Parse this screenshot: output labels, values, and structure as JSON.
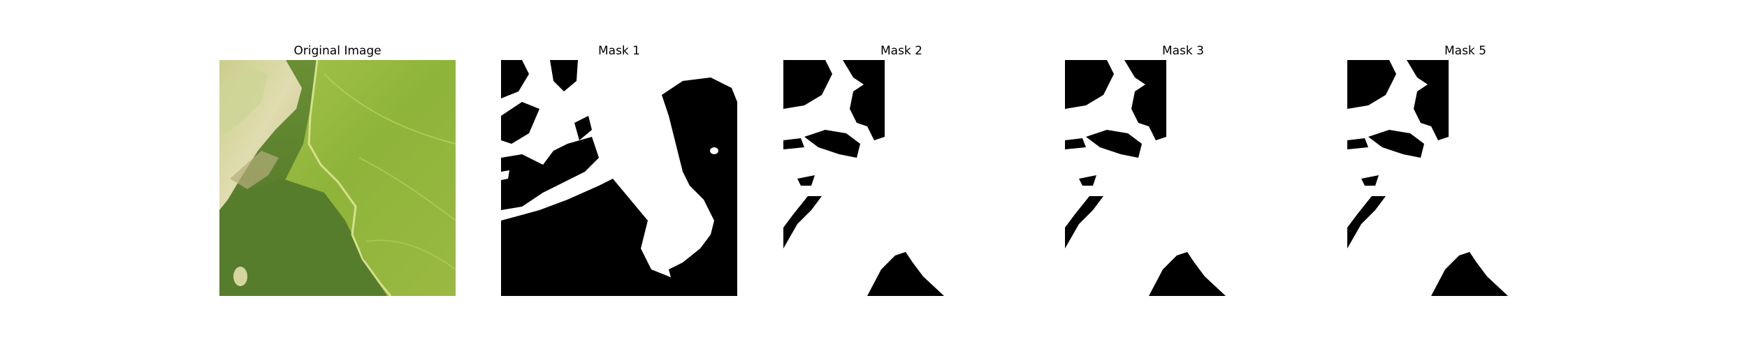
{
  "figure": {
    "panels": [
      {
        "title": "Original Image",
        "kind": "photo"
      },
      {
        "title": "Mask 1",
        "kind": "mask"
      },
      {
        "title": "Mask 2",
        "kind": "mask"
      },
      {
        "title": "Mask 3",
        "kind": "mask"
      },
      {
        "title": "Mask 5",
        "kind": "mask"
      }
    ]
  },
  "colors": {
    "mask_foreground": "#000000",
    "mask_background": "#ffffff",
    "leaf_light_green": "#8fb43a",
    "leaf_dark_green": "#51782a",
    "leaf_pale_yellow": "#d9d7a6"
  }
}
